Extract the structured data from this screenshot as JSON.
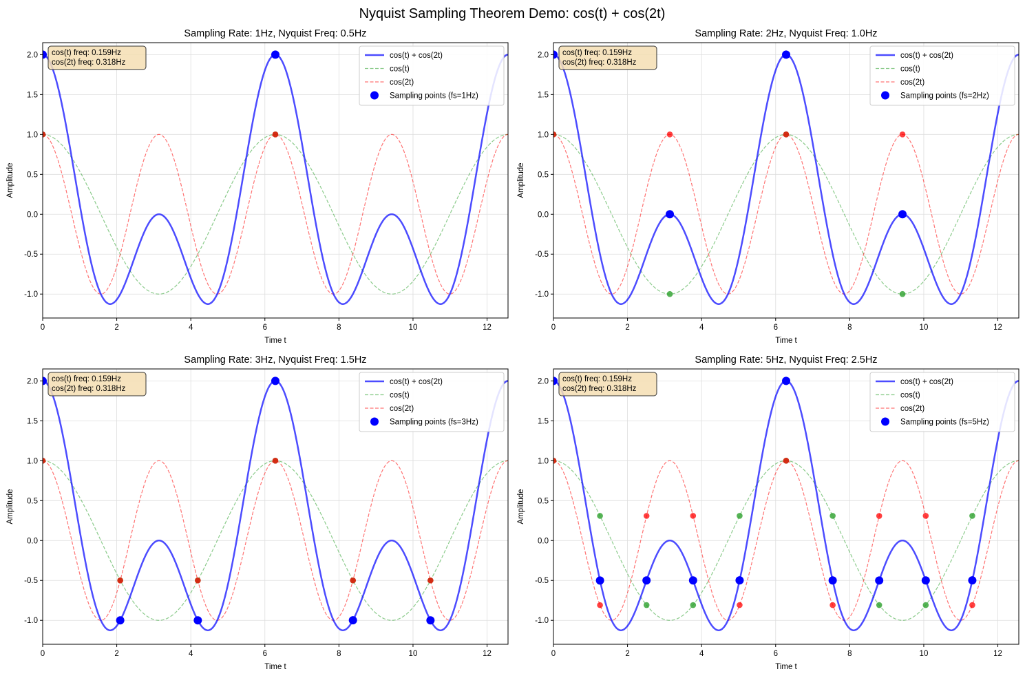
{
  "figure_title": "Nyquist Sampling Theorem Demo: cos(t) + cos(2t)",
  "colors": {
    "sum": "#0000ff",
    "cos_t": "#2ca02c",
    "cos_2t": "#ff0000",
    "samples": "#0000ff",
    "infobox_bg": "#f5deb3",
    "grid": "#dddddd"
  },
  "chart_data": [
    {
      "type": "line",
      "title": "Sampling Rate: 1Hz, Nyquist Freq: 0.5Hz",
      "sampling_rate_hz": 1,
      "xlabel": "Time t",
      "ylabel": "Amplitude",
      "xlim": [
        0,
        12.566
      ],
      "ylim": [
        -1.3,
        2.15
      ],
      "xticks": [
        0,
        2,
        4,
        6,
        8,
        10,
        12
      ],
      "xtick_labels": [
        "0",
        "2",
        "4",
        "6",
        "8",
        "10",
        "12"
      ],
      "yticks": [
        -1.0,
        -0.5,
        0.0,
        0.5,
        1.0,
        1.5,
        2.0
      ],
      "ytick_labels": [
        "-1.0",
        "-0.5",
        "0.0",
        "0.5",
        "1.0",
        "1.5",
        "2.0"
      ],
      "grid": true,
      "legend": [
        "cos(t) + cos(2t)",
        "cos(t)",
        "cos(2t)",
        "Sampling points (fs=1Hz)"
      ],
      "legend_loc": "upper right",
      "info_lines": [
        "cos(t) freq: 0.159Hz",
        "cos(2t) freq: 0.318Hz"
      ],
      "series": [
        {
          "name": "cos(t) + cos(2t)",
          "formula": "cos(t) + cos(2t)",
          "style": "solid"
        },
        {
          "name": "cos(t)",
          "formula": "cos(t)",
          "style": "dashed"
        },
        {
          "name": "cos(2t)",
          "formula": "cos(2t)",
          "style": "dashed"
        }
      ],
      "sample_t": [
        0,
        6.283
      ]
    },
    {
      "type": "line",
      "title": "Sampling Rate: 2Hz, Nyquist Freq: 1.0Hz",
      "sampling_rate_hz": 2,
      "xlabel": "Time t",
      "ylabel": "Amplitude",
      "xlim": [
        0,
        12.566
      ],
      "ylim": [
        -1.3,
        2.15
      ],
      "xticks": [
        0,
        2,
        4,
        6,
        8,
        10,
        12
      ],
      "xtick_labels": [
        "0",
        "2",
        "4",
        "6",
        "8",
        "10",
        "12"
      ],
      "yticks": [
        -1.0,
        -0.5,
        0.0,
        0.5,
        1.0,
        1.5,
        2.0
      ],
      "ytick_labels": [
        "-1.0",
        "-0.5",
        "0.0",
        "0.5",
        "1.0",
        "1.5",
        "2.0"
      ],
      "grid": true,
      "legend": [
        "cos(t) + cos(2t)",
        "cos(t)",
        "cos(2t)",
        "Sampling points (fs=2Hz)"
      ],
      "legend_loc": "upper right",
      "info_lines": [
        "cos(t) freq: 0.159Hz",
        "cos(2t) freq: 0.318Hz"
      ],
      "series": [
        {
          "name": "cos(t) + cos(2t)",
          "formula": "cos(t) + cos(2t)",
          "style": "solid"
        },
        {
          "name": "cos(t)",
          "formula": "cos(t)",
          "style": "dashed"
        },
        {
          "name": "cos(2t)",
          "formula": "cos(2t)",
          "style": "dashed"
        }
      ],
      "sample_t": [
        0,
        3.142,
        6.283,
        9.425
      ]
    },
    {
      "type": "line",
      "title": "Sampling Rate: 3Hz, Nyquist Freq: 1.5Hz",
      "sampling_rate_hz": 3,
      "xlabel": "Time t",
      "ylabel": "Amplitude",
      "xlim": [
        0,
        12.566
      ],
      "ylim": [
        -1.3,
        2.15
      ],
      "xticks": [
        0,
        2,
        4,
        6,
        8,
        10,
        12
      ],
      "xtick_labels": [
        "0",
        "2",
        "4",
        "6",
        "8",
        "10",
        "12"
      ],
      "yticks": [
        -1.0,
        -0.5,
        0.0,
        0.5,
        1.0,
        1.5,
        2.0
      ],
      "ytick_labels": [
        "-1.0",
        "-0.5",
        "0.0",
        "0.5",
        "1.0",
        "1.5",
        "2.0"
      ],
      "grid": true,
      "legend": [
        "cos(t) + cos(2t)",
        "cos(t)",
        "cos(2t)",
        "Sampling points (fs=3Hz)"
      ],
      "legend_loc": "upper right",
      "info_lines": [
        "cos(t) freq: 0.159Hz",
        "cos(2t) freq: 0.318Hz"
      ],
      "series": [
        {
          "name": "cos(t) + cos(2t)",
          "formula": "cos(t) + cos(2t)",
          "style": "solid"
        },
        {
          "name": "cos(t)",
          "formula": "cos(t)",
          "style": "dashed"
        },
        {
          "name": "cos(2t)",
          "formula": "cos(2t)",
          "style": "dashed"
        }
      ],
      "sample_t": [
        0,
        2.094,
        4.189,
        6.283,
        8.378,
        10.472
      ]
    },
    {
      "type": "line",
      "title": "Sampling Rate: 5Hz, Nyquist Freq: 2.5Hz",
      "sampling_rate_hz": 5,
      "xlabel": "Time t",
      "ylabel": "Amplitude",
      "xlim": [
        0,
        12.566
      ],
      "ylim": [
        -1.3,
        2.15
      ],
      "xticks": [
        0,
        2,
        4,
        6,
        8,
        10,
        12
      ],
      "xtick_labels": [
        "0",
        "2",
        "4",
        "6",
        "8",
        "10",
        "12"
      ],
      "yticks": [
        -1.0,
        -0.5,
        0.0,
        0.5,
        1.0,
        1.5,
        2.0
      ],
      "ytick_labels": [
        "-1.0",
        "-0.5",
        "0.0",
        "0.5",
        "1.0",
        "1.5",
        "2.0"
      ],
      "grid": true,
      "legend": [
        "cos(t) + cos(2t)",
        "cos(t)",
        "cos(2t)",
        "Sampling points (fs=5Hz)"
      ],
      "legend_loc": "upper right",
      "info_lines": [
        "cos(t) freq: 0.159Hz",
        "cos(2t) freq: 0.318Hz"
      ],
      "series": [
        {
          "name": "cos(t) + cos(2t)",
          "formula": "cos(t) + cos(2t)",
          "style": "solid"
        },
        {
          "name": "cos(t)",
          "formula": "cos(t)",
          "style": "dashed"
        },
        {
          "name": "cos(2t)",
          "formula": "cos(2t)",
          "style": "dashed"
        }
      ],
      "sample_t": [
        0,
        1.257,
        2.513,
        3.77,
        5.027,
        6.283,
        7.54,
        8.796,
        10.053,
        11.31
      ]
    }
  ]
}
